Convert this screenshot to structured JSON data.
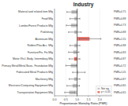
{
  "chart_data": {
    "type": "bar",
    "orientation": "horizontal",
    "title": "Industry",
    "x_label": "Proportionate Mortality Ratio (PMR)",
    "categories": [
      "Material and related item Mfg",
      "Food Mfg",
      "Lumber/Forest Products Mfg",
      "Publishing",
      "Aluminium Mfg",
      "Rubber/Plas Acc. Mfg",
      "Furniture/Fix, Fix Mfg",
      "Motor Vhcl, Body, Intermdiary Mfg",
      "Primary Metal/Metal Basic, Foundation Mfg",
      "Fabricated Metal Products Mfg",
      "Machinery Mfg",
      "Electronic/Computing Equipment Mfg",
      "Transportation Equipment Mfg"
    ],
    "values": [
      0.75,
      0.88,
      0.73,
      0.88,
      1.55,
      0.88,
      0.83,
      0.87,
      0.72,
      1.05,
      0.87,
      0.8,
      0.65
    ],
    "ci_lower": [
      0.55,
      0.68,
      0.52,
      0.62,
      1.1,
      0.68,
      0.62,
      0.65,
      0.5,
      0.8,
      0.65,
      0.55,
      0.45
    ],
    "ci_upper": [
      1.0,
      1.12,
      1.0,
      1.18,
      2.05,
      1.12,
      1.08,
      1.12,
      0.98,
      1.35,
      1.12,
      1.1,
      0.9
    ],
    "value_labels": [
      "PMR=0.75",
      "PMR=0.88",
      "PMR=0.73",
      "PMR=0.88",
      "PMR=1.55",
      "PMR=0.88",
      "PMR=0.83",
      "PMR=0.87",
      "PMR=0.72",
      "PMR=1.05",
      "PMR=0.87",
      "PMR=0.80",
      "PMR=0.65"
    ],
    "data_labels": true,
    "colors": [
      "#c8c8c8",
      "#c8c8c8",
      "#c8c8c8",
      "#c8c8c8",
      "#e8736b",
      "#c8c8c8",
      "#c8c8c8",
      "#e8736b",
      "#c8c8c8",
      "#c8c8c8",
      "#c8c8c8",
      "#c8c8c8",
      "#c8c8c8"
    ],
    "reference_line": 1.0,
    "xlim": [
      0.0,
      2.55
    ],
    "xticks": [
      {
        "value": 0.0,
        "label": "0.0"
      },
      {
        "value": 0.5,
        "label": "0.5"
      },
      {
        "value": 1.0,
        "label": "1.0"
      },
      {
        "value": 1.5,
        "label": "1.5"
      },
      {
        "value": 2.0,
        "label": "2.0"
      }
    ],
    "grid": true,
    "legend": "lower right",
    "legend_entries": [
      {
        "name": "Not sig.",
        "color": "#c8c8c8"
      },
      {
        "name": "p < 0.05",
        "color": "#e8736b"
      }
    ]
  }
}
